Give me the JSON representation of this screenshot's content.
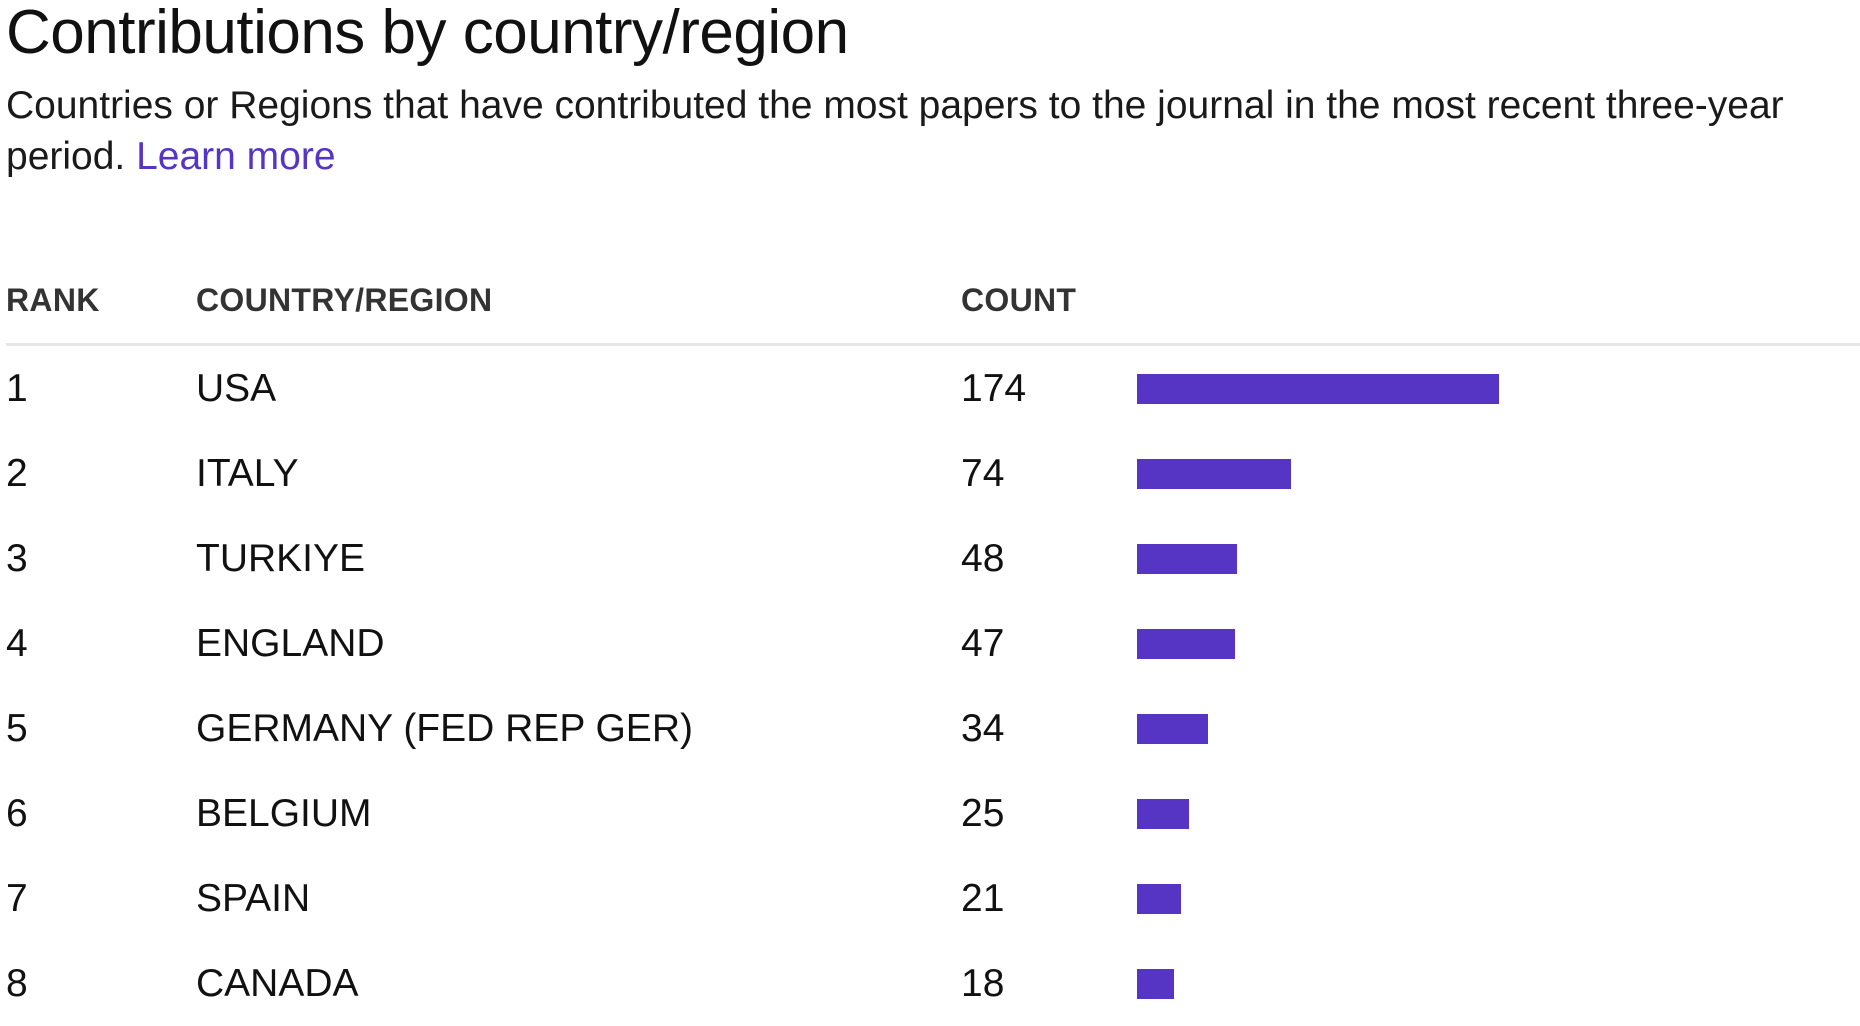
{
  "header": {
    "title": "Contributions by country/region",
    "subtitle": "Countries or Regions that have contributed the most papers to the journal in the most recent three-year period.",
    "learn_more": "Learn more"
  },
  "table": {
    "columns": {
      "rank": "RANK",
      "country": "COUNTRY/REGION",
      "count": "COUNT"
    },
    "rows": [
      {
        "rank": "1",
        "country": "USA",
        "count": 174
      },
      {
        "rank": "2",
        "country": "ITALY",
        "count": 74
      },
      {
        "rank": "3",
        "country": "TURKIYE",
        "count": 48
      },
      {
        "rank": "4",
        "country": "ENGLAND",
        "count": 47
      },
      {
        "rank": "5",
        "country": "GERMANY (FED REP GER)",
        "count": 34
      },
      {
        "rank": "6",
        "country": "BELGIUM",
        "count": 25
      },
      {
        "rank": "7",
        "country": "SPAIN",
        "count": 21
      },
      {
        "rank": "8",
        "country": "CANADA",
        "count": 18
      }
    ]
  },
  "colors": {
    "accent": "#5635c5",
    "divider": "#e6e6e6"
  }
}
